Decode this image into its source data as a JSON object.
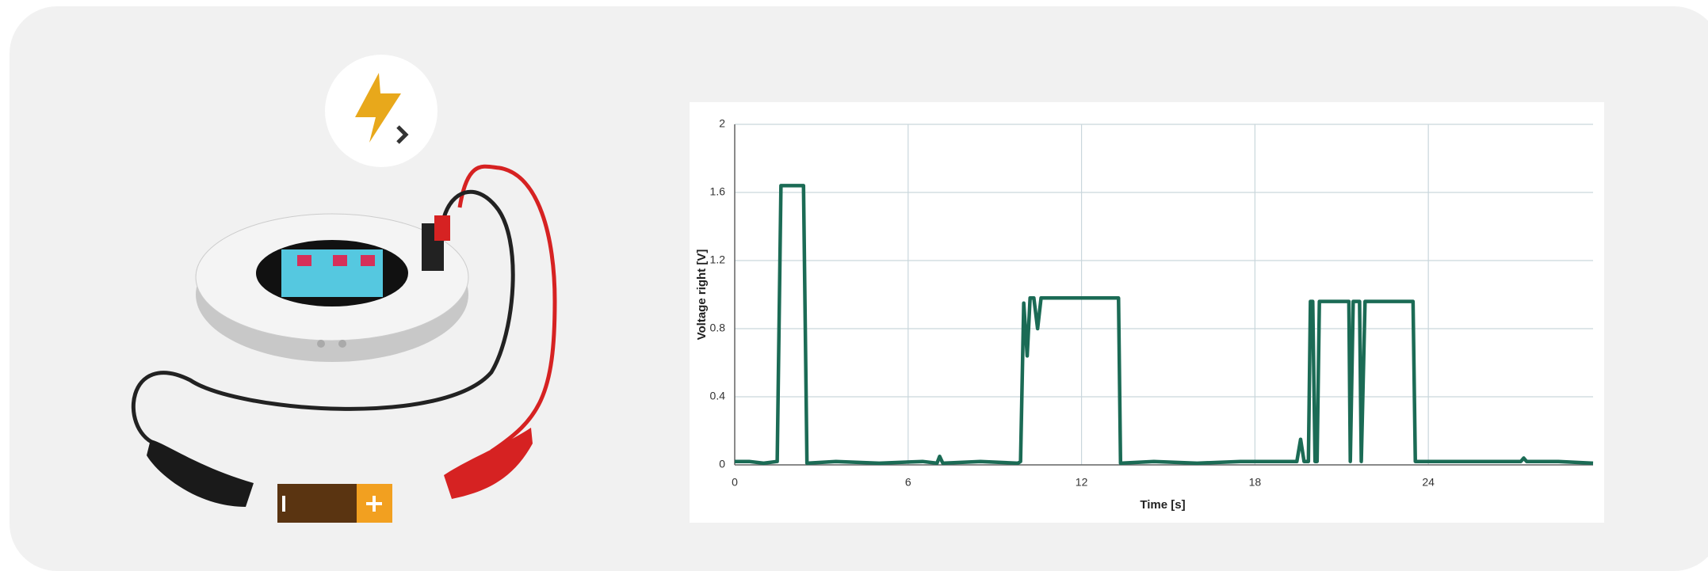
{
  "chart_data": {
    "type": "line",
    "x_label": "Time [s]",
    "y_label": "Voltage right [V]",
    "x": [
      0,
      0.5,
      1.0,
      1.47,
      1.6,
      2.0,
      2.38,
      2.5,
      3.5,
      5,
      6.5,
      7.0,
      7.09,
      7.2,
      8.5,
      9.8,
      9.89,
      10.0,
      10.12,
      10.22,
      10.35,
      10.48,
      10.6,
      11.5,
      12.5,
      13.28,
      13.35,
      14.5,
      16,
      17.5,
      19.0,
      19.45,
      19.58,
      19.7,
      19.85,
      19.92,
      20.0,
      20.08,
      20.15,
      20.23,
      21.25,
      21.3,
      21.4,
      21.62,
      21.68,
      21.81,
      23.47,
      23.55,
      25,
      26.5,
      27.2,
      27.3,
      27.4,
      28.5,
      29.7
    ],
    "values": [
      0.02,
      0.02,
      0.01,
      0.02,
      1.64,
      1.64,
      1.64,
      0.01,
      0.02,
      0.01,
      0.02,
      0.01,
      0.05,
      0.01,
      0.02,
      0.01,
      0.02,
      0.95,
      0.64,
      0.98,
      0.98,
      0.8,
      0.98,
      0.98,
      0.98,
      0.98,
      0.01,
      0.02,
      0.01,
      0.02,
      0.02,
      0.02,
      0.15,
      0.02,
      0.02,
      0.96,
      0.96,
      0.02,
      0.02,
      0.96,
      0.96,
      0.02,
      0.96,
      0.96,
      0.02,
      0.96,
      0.96,
      0.02,
      0.02,
      0.02,
      0.02,
      0.04,
      0.02,
      0.02,
      0.01
    ],
    "color": "#1b6b55",
    "xlim": [
      0,
      29.7
    ],
    "xticks": [
      0,
      6,
      12,
      18,
      24
    ],
    "ylim": [
      0,
      2
    ],
    "yticks": [
      0,
      0.4,
      0.8,
      1.2,
      1.6,
      2
    ],
    "grid": true
  }
}
